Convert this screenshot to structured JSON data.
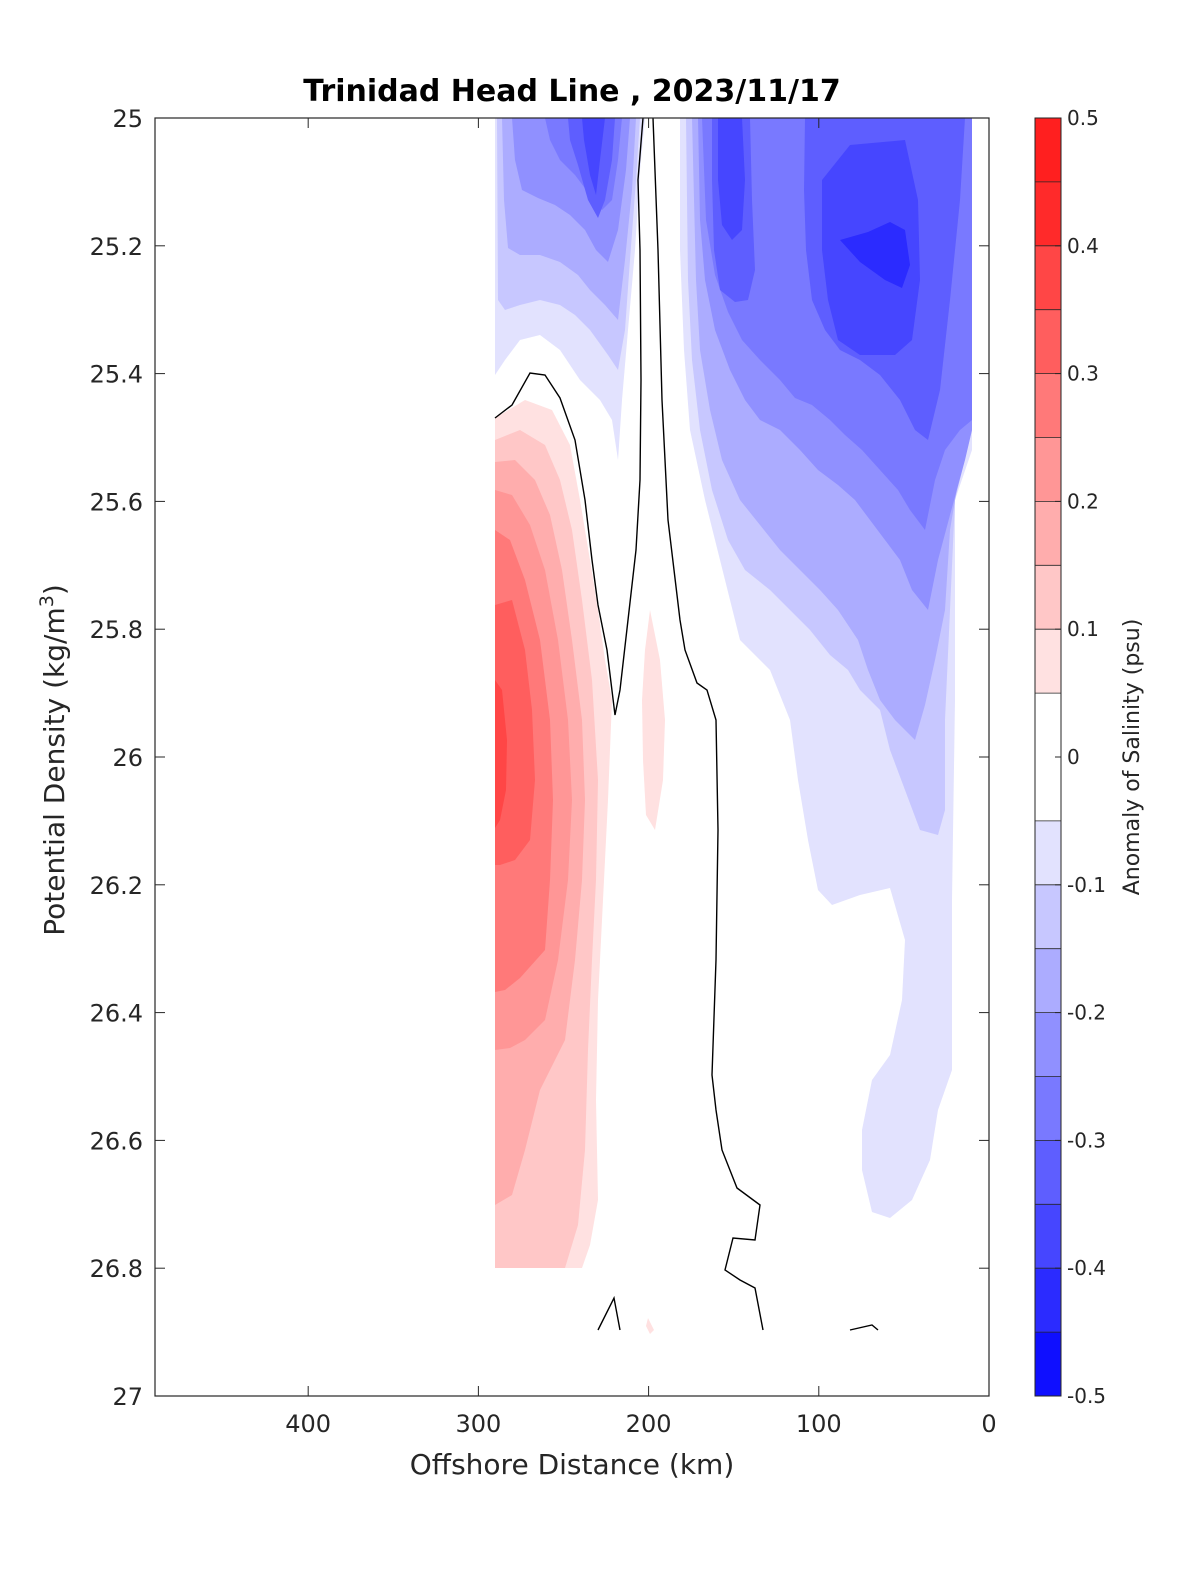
{
  "chart_data": {
    "type": "heatmap",
    "title": "Trinidad Head Line , 2023/11/17",
    "xlabel": "Offshore Distance (km)",
    "ylabel_main": "Potential Density (kg/m",
    "ylabel_sup": "3",
    "ylabel_tail": ")",
    "x_reversed": true,
    "y_reversed": true,
    "xlim": [
      490,
      0
    ],
    "ylim": [
      25,
      27
    ],
    "x_ticks": [
      400,
      300,
      200,
      100,
      0
    ],
    "y_ticks": [
      25,
      25.2,
      25.4,
      25.6,
      25.8,
      26,
      26.2,
      26.4,
      26.6,
      26.8,
      27
    ],
    "y_tick_labels": [
      "25",
      "25.2",
      "25.4",
      "25.6",
      "25.8",
      "26",
      "26.2",
      "26.4",
      "26.6",
      "26.8",
      "27"
    ],
    "colorbar": {
      "label": "Anomaly of Salinity (psu)",
      "range": [
        -0.5,
        0.5
      ],
      "levels": [
        -0.5,
        -0.45,
        -0.4,
        -0.35,
        -0.3,
        -0.25,
        -0.2,
        -0.15,
        -0.1,
        -0.05,
        0.05,
        0.1,
        0.15,
        0.2,
        0.25,
        0.3,
        0.35,
        0.4,
        0.45,
        0.5
      ],
      "tick_values": [
        0.5,
        0.4,
        0.3,
        0.2,
        0.1,
        0,
        -0.1,
        -0.2,
        -0.3,
        -0.4,
        -0.5
      ],
      "tick_labels": [
        "0.5",
        "0.4",
        "0.3",
        "0.2",
        "0.1",
        "0",
        "-0.1",
        "-0.2",
        "-0.3",
        "-0.4",
        "-0.5"
      ],
      "bands": [
        {
          "from": 0.45,
          "to": 0.5,
          "color": "#ff1f1f"
        },
        {
          "from": 0.4,
          "to": 0.45,
          "color": "#ff2a2a"
        },
        {
          "from": 0.35,
          "to": 0.4,
          "color": "#ff4646"
        },
        {
          "from": 0.3,
          "to": 0.35,
          "color": "#ff5e5e"
        },
        {
          "from": 0.25,
          "to": 0.3,
          "color": "#ff7979"
        },
        {
          "from": 0.2,
          "to": 0.25,
          "color": "#ff9696"
        },
        {
          "from": 0.15,
          "to": 0.2,
          "color": "#ffadad"
        },
        {
          "from": 0.1,
          "to": 0.15,
          "color": "#ffc7c7"
        },
        {
          "from": 0.05,
          "to": 0.1,
          "color": "#ffe1e1"
        },
        {
          "from": -0.05,
          "to": 0.05,
          "color": "#ffffff"
        },
        {
          "from": -0.1,
          "to": -0.05,
          "color": "#e2e2fe"
        },
        {
          "from": -0.15,
          "to": -0.1,
          "color": "#c7c7ff"
        },
        {
          "from": -0.2,
          "to": -0.15,
          "color": "#acacff"
        },
        {
          "from": -0.25,
          "to": -0.2,
          "color": "#9090ff"
        },
        {
          "from": -0.3,
          "to": -0.25,
          "color": "#7979ff"
        },
        {
          "from": -0.35,
          "to": -0.3,
          "color": "#5e5eff"
        },
        {
          "from": -0.4,
          "to": -0.35,
          "color": "#4646ff"
        },
        {
          "from": -0.45,
          "to": -0.4,
          "color": "#2b2bff"
        },
        {
          "from": -0.5,
          "to": -0.45,
          "color": "#0f0fff"
        }
      ]
    },
    "data_extent": {
      "x": [
        290,
        10
      ],
      "y": [
        25,
        26.92
      ]
    },
    "zero_contour_color": "#000000",
    "anomaly_features": [
      {
        "name": "positive core",
        "x": [
          290,
          200
        ],
        "y": [
          25.45,
          26.8
        ],
        "max": 0.33,
        "center": [
          288,
          25.97
        ]
      },
      {
        "name": "negative offshore lobe",
        "x": [
          240,
          195
        ],
        "y": [
          25,
          25.95
        ],
        "min": -0.37,
        "center": [
          230,
          25.1
        ]
      },
      {
        "name": "negative nearshore lobe",
        "x": [
          185,
          10
        ],
        "y": [
          25,
          26.72
        ],
        "min": -0.42,
        "center": [
          60,
          25.2
        ]
      }
    ]
  }
}
